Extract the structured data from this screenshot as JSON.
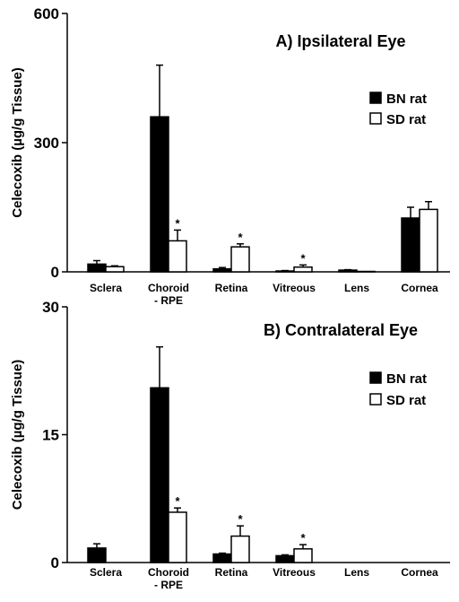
{
  "chart_data": [
    {
      "type": "bar",
      "title": "A) Ipsilateral Eye",
      "ylabel": "Celecoxib (µg/g Tissue)",
      "ylim": [
        0,
        600
      ],
      "yticks": [
        "0",
        "300",
        "600"
      ],
      "ytick_values": [
        0,
        300,
        600
      ],
      "categories": [
        "Sclera",
        "Choroid\n- RPE",
        "Retina",
        "Vitreous",
        "Lens",
        "Cornea"
      ],
      "legend_position": "right",
      "series": [
        {
          "name": "BN rat",
          "color": "#000000",
          "fill": "#000000",
          "values": [
            18,
            360,
            7,
            2,
            4,
            125
          ],
          "errors": [
            8,
            120,
            3,
            1,
            1,
            25
          ],
          "significant": [
            false,
            false,
            false,
            false,
            false,
            false
          ]
        },
        {
          "name": "SD rat",
          "color": "#000000",
          "fill": "#ffffff",
          "values": [
            12,
            72,
            58,
            11,
            1,
            145
          ],
          "errors": [
            2,
            25,
            7,
            5,
            0,
            18
          ],
          "significant": [
            false,
            true,
            true,
            true,
            false,
            false
          ]
        }
      ],
      "significance_marker": "*"
    },
    {
      "type": "bar",
      "title": "B) Contralateral Eye",
      "ylabel": "Celecoxib (µg/g Tissue)",
      "ylim": [
        0,
        30
      ],
      "yticks": [
        "0",
        "15",
        "30"
      ],
      "ytick_values": [
        0,
        15,
        30
      ],
      "categories": [
        "Sclera",
        "Choroid\n- RPE",
        "Retina",
        "Vitreous",
        "Lens",
        "Cornea"
      ],
      "legend_position": "right",
      "series": [
        {
          "name": "BN rat",
          "color": "#000000",
          "fill": "#000000",
          "values": [
            1.7,
            20.5,
            1.0,
            0.8,
            0,
            0
          ],
          "errors": [
            0.5,
            4.8,
            0.1,
            0.1,
            0,
            0
          ],
          "significant": [
            false,
            false,
            false,
            false,
            false,
            false
          ]
        },
        {
          "name": "SD rat",
          "color": "#000000",
          "fill": "#ffffff",
          "values": [
            0,
            5.9,
            3.1,
            1.6,
            0,
            0
          ],
          "errors": [
            0,
            0.5,
            1.2,
            0.5,
            0,
            0
          ],
          "significant": [
            false,
            true,
            true,
            true,
            false,
            false
          ]
        }
      ],
      "significance_marker": "*"
    }
  ]
}
